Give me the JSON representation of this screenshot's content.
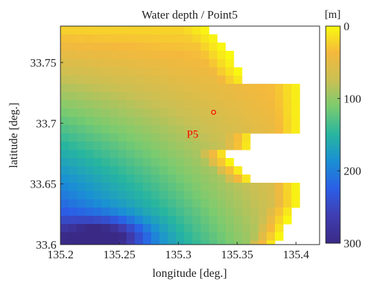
{
  "title": "Water depth / Point5",
  "x_axis": {
    "label": "longitude [deg.]",
    "ticks": [
      "135.2",
      "135.25",
      "135.3",
      "135.35",
      "135.4"
    ],
    "range": [
      135.2,
      135.42
    ]
  },
  "y_axis": {
    "label": "latitude [deg.]",
    "ticks": [
      "33.6",
      "33.65",
      "33.7",
      "33.75"
    ],
    "range": [
      33.6,
      33.78
    ]
  },
  "colorbar": {
    "unit": "[m]",
    "ticks": [
      "0",
      "100",
      "200",
      "300"
    ],
    "range": [
      0,
      300
    ],
    "colors": [
      "#f9fb0e",
      "#f5b93c",
      "#c9c054",
      "#7bcb6f",
      "#27b5a0",
      "#1a90d4",
      "#2b5ee6",
      "#3f3eb2",
      "#3a2a86"
    ]
  },
  "point": {
    "label": "P5",
    "lon": 135.33,
    "lat": 33.709,
    "color": "#ff0000"
  }
}
